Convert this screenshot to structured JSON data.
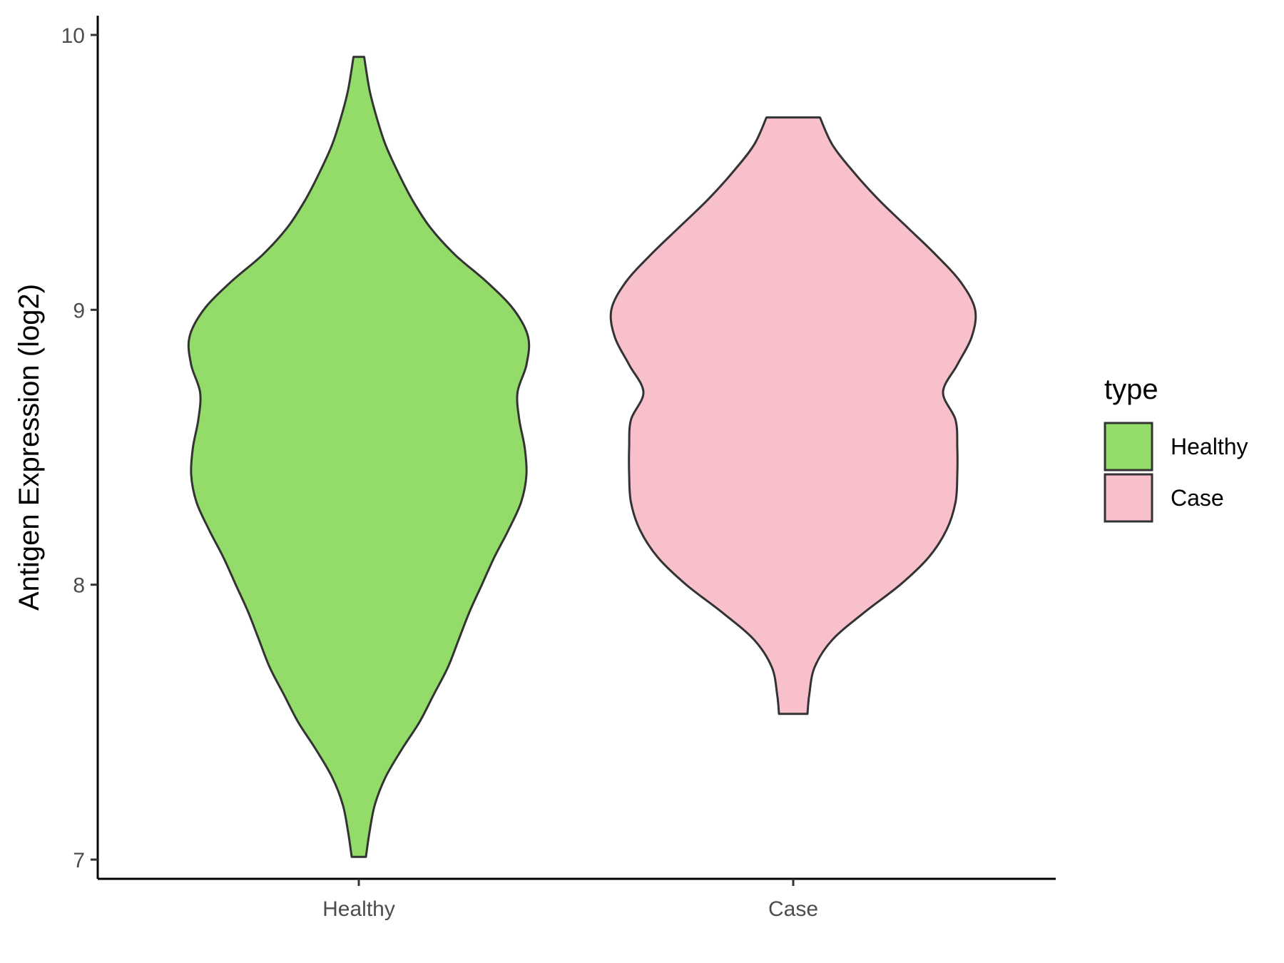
{
  "chart_data": {
    "type": "violin",
    "title": "",
    "xlabel": "",
    "ylabel": "Antigen Expression (log2)",
    "ylim": [
      6.93,
      10.07
    ],
    "y_ticks": [
      7,
      8,
      9,
      10
    ],
    "categories": [
      "Healthy",
      "Case"
    ],
    "legend": {
      "title": "type",
      "position": "right",
      "entries": [
        "Healthy",
        "Case"
      ]
    },
    "grid": false,
    "series": [
      {
        "name": "Healthy",
        "color": "#93dc6a",
        "outline": "#333333",
        "ymin": 7.01,
        "ymax": 9.92,
        "profile": [
          [
            7.01,
            0.02
          ],
          [
            7.1,
            0.03
          ],
          [
            7.2,
            0.045
          ],
          [
            7.3,
            0.075
          ],
          [
            7.4,
            0.12
          ],
          [
            7.5,
            0.17
          ],
          [
            7.6,
            0.21
          ],
          [
            7.7,
            0.25
          ],
          [
            7.8,
            0.28
          ],
          [
            7.9,
            0.31
          ],
          [
            8.0,
            0.345
          ],
          [
            8.1,
            0.38
          ],
          [
            8.2,
            0.42
          ],
          [
            8.3,
            0.455
          ],
          [
            8.4,
            0.47
          ],
          [
            8.5,
            0.465
          ],
          [
            8.6,
            0.45
          ],
          [
            8.7,
            0.445
          ],
          [
            8.8,
            0.47
          ],
          [
            8.9,
            0.475
          ],
          [
            9.0,
            0.435
          ],
          [
            9.1,
            0.36
          ],
          [
            9.2,
            0.27
          ],
          [
            9.3,
            0.2
          ],
          [
            9.4,
            0.15
          ],
          [
            9.5,
            0.11
          ],
          [
            9.6,
            0.075
          ],
          [
            9.7,
            0.05
          ],
          [
            9.8,
            0.03
          ],
          [
            9.92,
            0.015
          ]
        ]
      },
      {
        "name": "Case",
        "color": "#f7c0cb",
        "outline": "#333333",
        "ymin": 7.53,
        "ymax": 9.7,
        "profile": [
          [
            7.53,
            0.04
          ],
          [
            7.6,
            0.045
          ],
          [
            7.7,
            0.06
          ],
          [
            7.8,
            0.11
          ],
          [
            7.9,
            0.2
          ],
          [
            8.0,
            0.3
          ],
          [
            8.1,
            0.38
          ],
          [
            8.2,
            0.43
          ],
          [
            8.3,
            0.455
          ],
          [
            8.4,
            0.46
          ],
          [
            8.5,
            0.46
          ],
          [
            8.6,
            0.455
          ],
          [
            8.7,
            0.42
          ],
          [
            8.8,
            0.46
          ],
          [
            8.9,
            0.5
          ],
          [
            9.0,
            0.51
          ],
          [
            9.1,
            0.47
          ],
          [
            9.2,
            0.4
          ],
          [
            9.3,
            0.32
          ],
          [
            9.4,
            0.24
          ],
          [
            9.5,
            0.17
          ],
          [
            9.6,
            0.11
          ],
          [
            9.7,
            0.075
          ]
        ]
      }
    ]
  }
}
